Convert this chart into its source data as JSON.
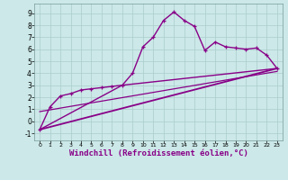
{
  "bg_color": "#cce8e8",
  "grid_color": "#aacccc",
  "line_color": "#880088",
  "xlabel": "Windchill (Refroidissement éolien,°C)",
  "xlabel_fontsize": 6.5,
  "ylabel_values": [
    -1,
    0,
    1,
    2,
    3,
    4,
    5,
    6,
    7,
    8,
    9
  ],
  "xlim": [
    -0.5,
    23.5
  ],
  "ylim": [
    -1.6,
    9.8
  ],
  "x_ticks": [
    0,
    1,
    2,
    3,
    4,
    5,
    6,
    7,
    8,
    9,
    10,
    11,
    12,
    13,
    14,
    15,
    16,
    17,
    18,
    19,
    20,
    21,
    22,
    23
  ],
  "series": [
    {
      "x": [
        0,
        1,
        2,
        3,
        4,
        5,
        6,
        7,
        8,
        9,
        10,
        11,
        12,
        13,
        14,
        15,
        16,
        17,
        18,
        19,
        20,
        21,
        22,
        23
      ],
      "y": [
        -0.7,
        1.2,
        2.1,
        2.3,
        2.6,
        2.7,
        2.8,
        2.9,
        3.0,
        4.0,
        6.2,
        7.0,
        8.4,
        9.1,
        8.4,
        7.9,
        5.9,
        6.6,
        6.2,
        6.1,
        6.0,
        6.1,
        5.5,
        4.4
      ],
      "has_markers": true,
      "linewidth": 1.0
    },
    {
      "x": [
        0,
        23
      ],
      "y": [
        -0.7,
        4.4
      ],
      "has_markers": false,
      "linewidth": 1.3
    },
    {
      "x": [
        0,
        8,
        23
      ],
      "y": [
        -0.7,
        3.0,
        4.4
      ],
      "has_markers": false,
      "linewidth": 1.0
    },
    {
      "x": [
        0,
        23
      ],
      "y": [
        0.8,
        4.15
      ],
      "has_markers": false,
      "linewidth": 0.9
    }
  ]
}
